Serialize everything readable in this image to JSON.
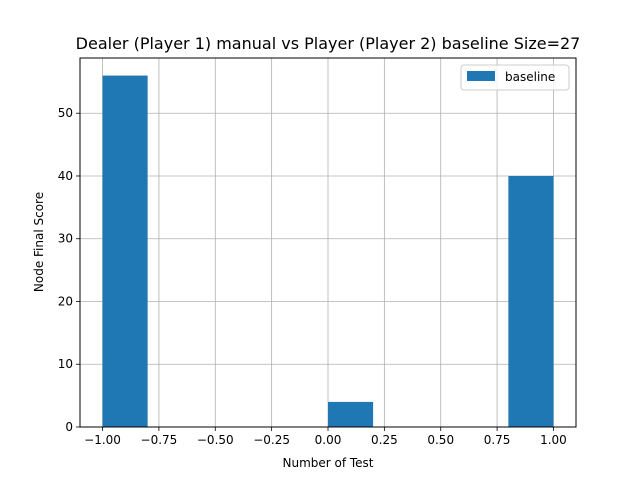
{
  "chart_data": {
    "type": "bar",
    "title": "Dealer (Player 1) manual vs Player (Player 2) baseline Size=27",
    "xlabel": "Number of Test",
    "ylabel": "Node Final Score",
    "xlim": [
      -1.1,
      1.1
    ],
    "ylim": [
      0,
      58.8
    ],
    "xticks": [
      -1.0,
      -0.75,
      -0.5,
      -0.25,
      0.0,
      0.25,
      0.5,
      0.75,
      1.0
    ],
    "xtick_labels": [
      "−1.00",
      "−0.75",
      "−0.50",
      "−0.25",
      "0.00",
      "0.25",
      "0.50",
      "0.75",
      "1.00"
    ],
    "yticks": [
      0,
      10,
      20,
      30,
      40,
      50
    ],
    "ytick_labels": [
      "0",
      "10",
      "20",
      "30",
      "40",
      "50"
    ],
    "grid": true,
    "legend_position": "top-right",
    "series": [
      {
        "name": "baseline",
        "color": "#1f77b4",
        "bins": [
          {
            "x0": -1.0,
            "x1": -0.8,
            "value": 56
          },
          {
            "x0": -0.8,
            "x1": -0.6,
            "value": 0
          },
          {
            "x0": -0.6,
            "x1": -0.4,
            "value": 0
          },
          {
            "x0": -0.4,
            "x1": -0.2,
            "value": 0
          },
          {
            "x0": -0.2,
            "x1": 0.0,
            "value": 0
          },
          {
            "x0": 0.0,
            "x1": 0.2,
            "value": 4
          },
          {
            "x0": 0.2,
            "x1": 0.4,
            "value": 0
          },
          {
            "x0": 0.4,
            "x1": 0.6,
            "value": 0
          },
          {
            "x0": 0.6,
            "x1": 0.8,
            "value": 0
          },
          {
            "x0": 0.8,
            "x1": 1.0,
            "value": 40
          }
        ]
      }
    ]
  }
}
